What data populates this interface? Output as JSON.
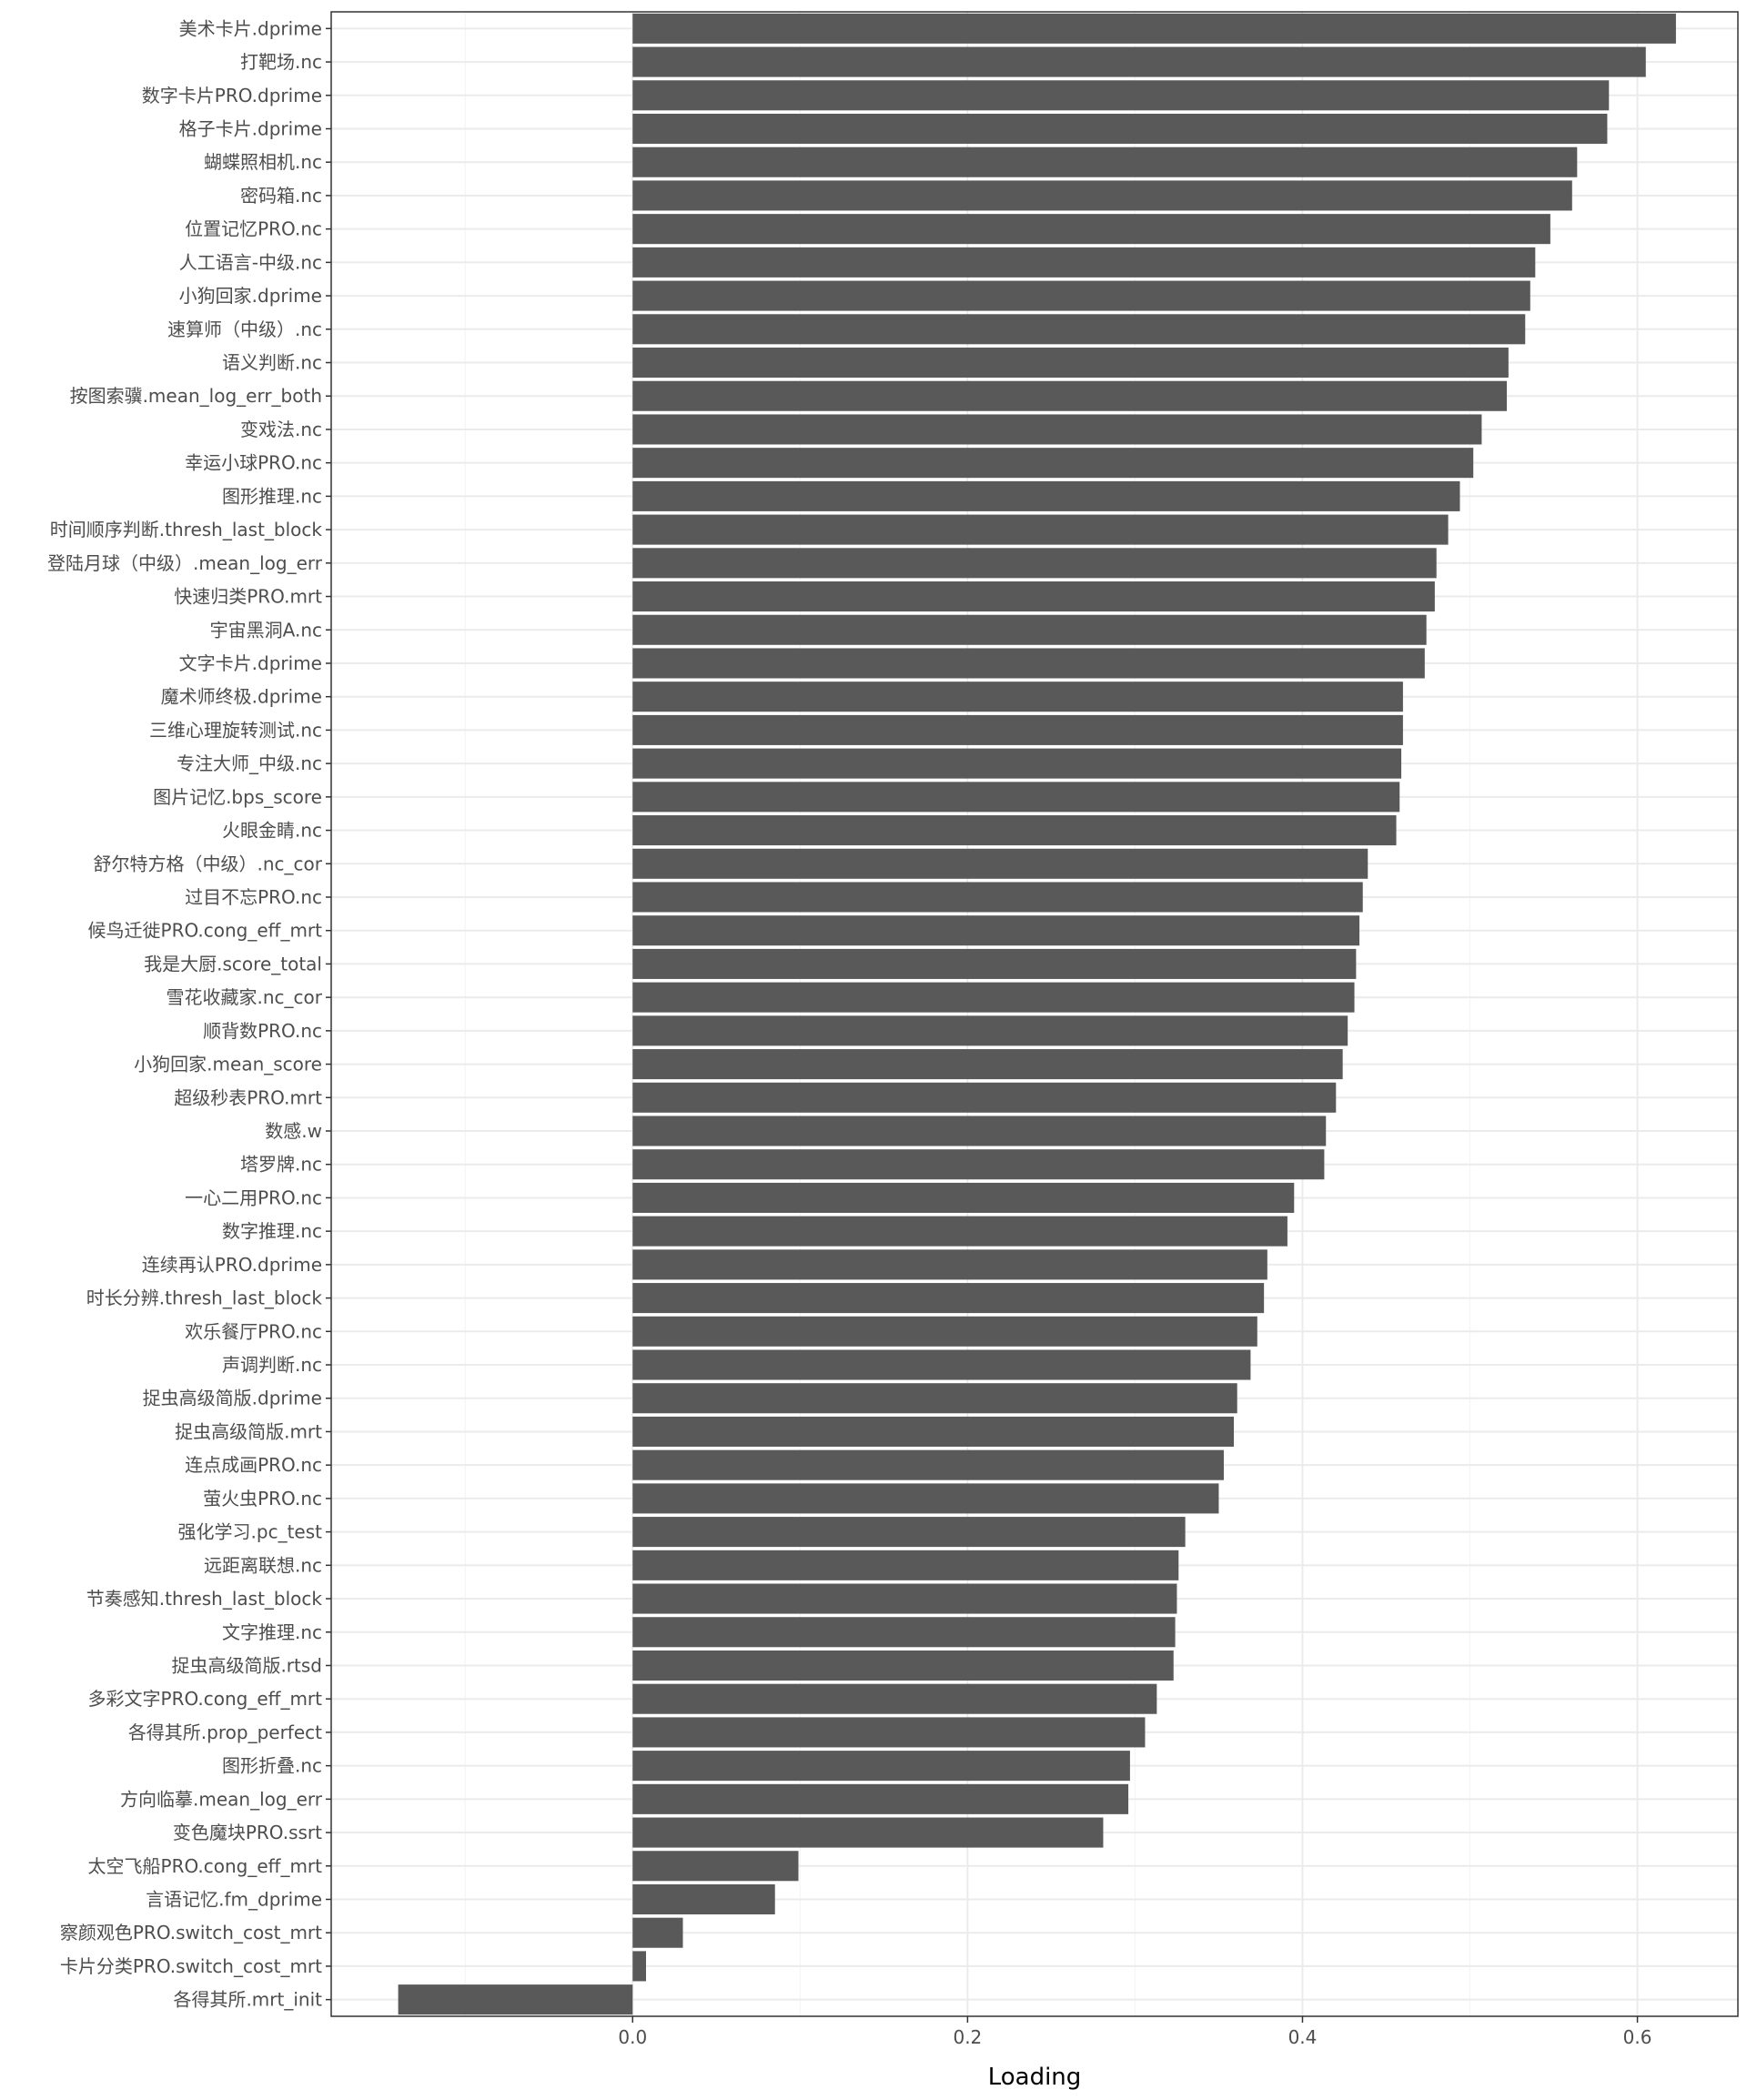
{
  "chart_data": {
    "type": "bar",
    "orientation": "horizontal",
    "title": "",
    "xlabel": "Loading",
    "ylabel": "",
    "xlim": [
      -0.18,
      0.66
    ],
    "xticks": [
      0.0,
      0.2,
      0.4,
      0.6
    ],
    "xtick_labels": [
      "0.0",
      "0.2",
      "0.4",
      "0.6"
    ],
    "grid": true,
    "categories": [
      "美术卡片.dprime",
      "打靶场.nc",
      "数字卡片PRO.dprime",
      "格子卡片.dprime",
      "蝴蝶照相机.nc",
      "密码箱.nc",
      "位置记忆PRO.nc",
      "人工语言-中级.nc",
      "小狗回家.dprime",
      "速算师（中级）.nc",
      "语义判断.nc",
      "按图索骥.mean_log_err_both",
      "变戏法.nc",
      "幸运小球PRO.nc",
      "图形推理.nc",
      "时间顺序判断.thresh_last_block",
      "登陆月球（中级）.mean_log_err",
      "快速归类PRO.mrt",
      "宇宙黑洞A.nc",
      "文字卡片.dprime",
      "魔术师终极.dprime",
      "三维心理旋转测试.nc",
      "专注大师_中级.nc",
      "图片记忆.bps_score",
      "火眼金睛.nc",
      "舒尔特方格（中级）.nc_cor",
      "过目不忘PRO.nc",
      "候鸟迁徙PRO.cong_eff_mrt",
      "我是大厨.score_total",
      "雪花收藏家.nc_cor",
      "顺背数PRO.nc",
      "小狗回家.mean_score",
      "超级秒表PRO.mrt",
      "数感.w",
      "塔罗牌.nc",
      "一心二用PRO.nc",
      "数字推理.nc",
      "连续再认PRO.dprime",
      "时长分辨.thresh_last_block",
      "欢乐餐厅PRO.nc",
      "声调判断.nc",
      "捉虫高级简版.dprime",
      "捉虫高级简版.mrt",
      "连点成画PRO.nc",
      "萤火虫PRO.nc",
      "强化学习.pc_test",
      "远距离联想.nc",
      "节奏感知.thresh_last_block",
      "文字推理.nc",
      "捉虫高级简版.rtsd",
      "多彩文字PRO.cong_eff_mrt",
      "各得其所.prop_perfect",
      "图形折叠.nc",
      "方向临摹.mean_log_err",
      "变色魔块PRO.ssrt",
      "太空飞船PRO.cong_eff_mrt",
      "言语记忆.fm_dprime",
      "察颜观色PRO.switch_cost_mrt",
      "卡片分类PRO.switch_cost_mrt",
      "各得其所.mrt_init"
    ],
    "values": [
      0.623,
      0.605,
      0.583,
      0.582,
      0.564,
      0.561,
      0.548,
      0.539,
      0.536,
      0.533,
      0.523,
      0.522,
      0.507,
      0.502,
      0.494,
      0.487,
      0.48,
      0.479,
      0.474,
      0.473,
      0.46,
      0.46,
      0.459,
      0.458,
      0.456,
      0.439,
      0.436,
      0.434,
      0.432,
      0.431,
      0.427,
      0.424,
      0.42,
      0.414,
      0.413,
      0.395,
      0.391,
      0.379,
      0.377,
      0.373,
      0.369,
      0.361,
      0.359,
      0.353,
      0.35,
      0.33,
      0.326,
      0.325,
      0.324,
      0.323,
      0.313,
      0.306,
      0.297,
      0.296,
      0.281,
      0.099,
      0.085,
      0.03,
      0.008,
      -0.14
    ]
  },
  "style": {
    "bar_color": "#595959",
    "panel_border": "#333333",
    "grid_major": "#ebebeb",
    "grid_minor": "#f5f5f5",
    "label_color": "#4d4d4d"
  }
}
